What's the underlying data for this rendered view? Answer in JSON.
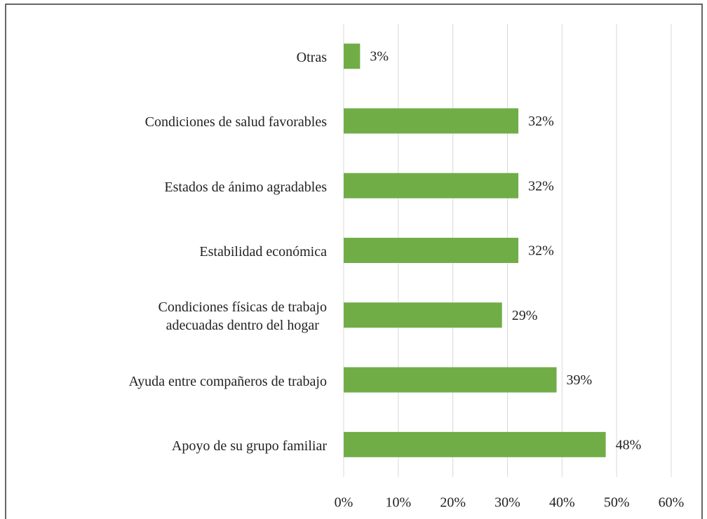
{
  "chart_data": {
    "type": "barh",
    "categories": [
      "Otras",
      "Condiciones de salud favorables",
      "Estados de ánimo agradables",
      "Estabilidad económica",
      "Condiciones físicas de trabajo\nadecuadas dentro del hogar",
      "Ayuda entre compañeros de trabajo",
      "Apoyo de su grupo familiar"
    ],
    "values": [
      3,
      32,
      32,
      32,
      29,
      39,
      48
    ],
    "value_labels": [
      "3%",
      "32%",
      "32%",
      "32%",
      "29%",
      "39%",
      "48%"
    ],
    "color": "#70ad47",
    "xlim": [
      0,
      60
    ],
    "xticks": [
      {
        "value": 0,
        "label": "0%"
      },
      {
        "value": 10,
        "label": "10%"
      },
      {
        "value": 20,
        "label": "20%"
      },
      {
        "value": 30,
        "label": "30%"
      },
      {
        "value": 40,
        "label": "40%"
      },
      {
        "value": 50,
        "label": "50%"
      },
      {
        "value": 60,
        "label": "60%"
      }
    ],
    "grid": true
  }
}
